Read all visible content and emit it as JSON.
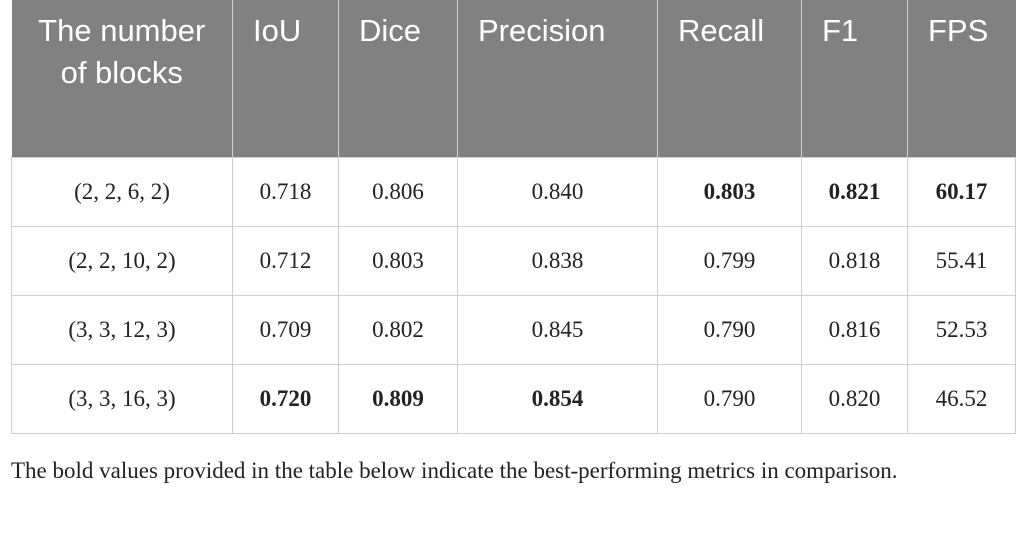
{
  "table": {
    "header": [
      "The number of blocks",
      "IoU",
      "Dice",
      "Precision",
      "Recall",
      "F1",
      "FPS"
    ],
    "rows": [
      [
        "(2, 2, 6, 2)",
        "0.718",
        "0.806",
        "0.840",
        "0.803",
        "0.821",
        "60.17"
      ],
      [
        "(2, 2, 10, 2)",
        "0.712",
        "0.803",
        "0.838",
        "0.799",
        "0.818",
        "55.41"
      ],
      [
        "(3, 3, 12, 3)",
        "0.709",
        "0.802",
        "0.845",
        "0.790",
        "0.816",
        "52.53"
      ],
      [
        "(3, 3, 16, 3)",
        "0.720",
        "0.809",
        "0.854",
        "0.790",
        "0.820",
        "46.52"
      ]
    ],
    "bold_cells": [
      [
        0,
        4
      ],
      [
        0,
        5
      ],
      [
        0,
        6
      ],
      [
        3,
        1
      ],
      [
        3,
        2
      ],
      [
        3,
        3
      ]
    ]
  },
  "note": "The bold values provided in the table below indicate the best-performing metrics in comparison."
}
